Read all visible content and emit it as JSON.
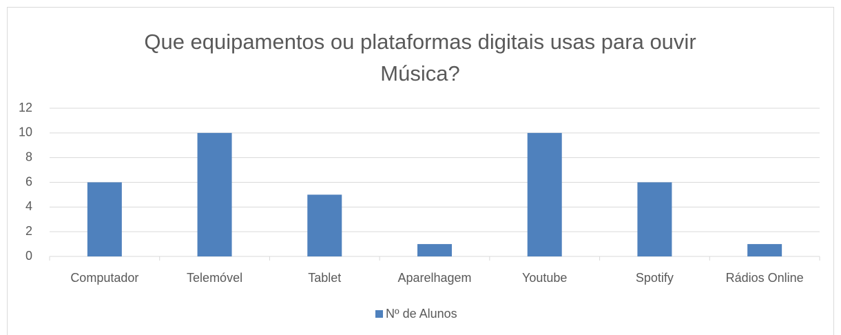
{
  "chart_data": {
    "type": "bar",
    "title": "Que equipamentos ou plataformas digitais usas para ouvir Música?",
    "categories": [
      "Computador",
      "Telemóvel",
      "Tablet",
      "Aparelhagem",
      "Youtube",
      "Spotify",
      "Rádios Online"
    ],
    "series": [
      {
        "name": "Nº de Alunos",
        "color": "#4f81bd",
        "values": [
          6,
          10,
          5,
          1,
          10,
          6,
          1
        ]
      }
    ],
    "ylim": [
      0,
      12
    ],
    "yticks": [
      0,
      2,
      4,
      6,
      8,
      10,
      12
    ],
    "grid": true,
    "legend": "bottom"
  }
}
